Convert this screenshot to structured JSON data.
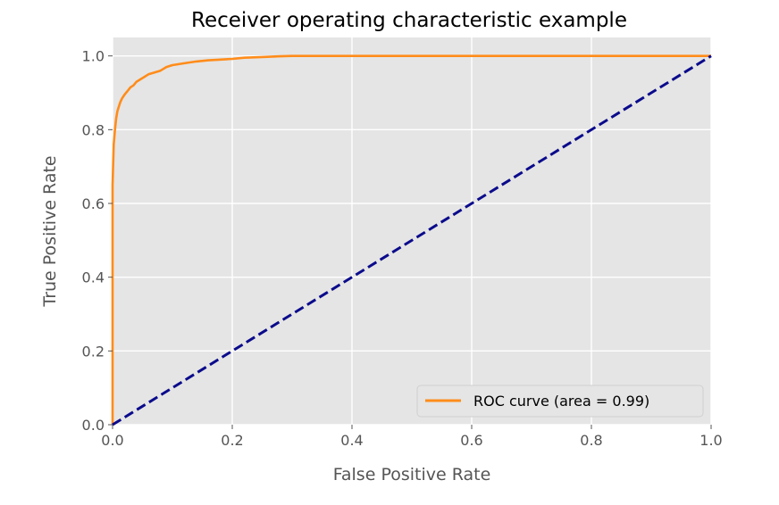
{
  "chart_data": {
    "type": "line",
    "title": "Receiver operating characteristic example",
    "xlabel": "False Positive Rate",
    "ylabel": "True Positive Rate",
    "xlim": [
      0.0,
      1.0
    ],
    "ylim": [
      0.0,
      1.05
    ],
    "xticks": [
      0.0,
      0.2,
      0.4,
      0.6,
      0.8,
      1.0
    ],
    "xtick_labels": [
      "0.0",
      "0.2",
      "0.4",
      "0.6",
      "0.8",
      "1.0"
    ],
    "yticks": [
      0.0,
      0.2,
      0.4,
      0.6,
      0.8,
      1.0
    ],
    "ytick_labels": [
      "0.0",
      "0.2",
      "0.4",
      "0.6",
      "0.8",
      "1.0"
    ],
    "grid": true,
    "legend_position": "lower-right",
    "background_color": "#e5e5e5",
    "series": [
      {
        "name": "ROC curve (area = 0.99)",
        "color": "#ff8c1a",
        "style": "solid",
        "show_in_legend": true,
        "x": [
          0.0,
          0.0,
          0.002,
          0.004,
          0.006,
          0.008,
          0.01,
          0.013,
          0.016,
          0.02,
          0.025,
          0.03,
          0.035,
          0.04,
          0.05,
          0.06,
          0.07,
          0.08,
          0.09,
          0.1,
          0.12,
          0.14,
          0.16,
          0.18,
          0.2,
          0.22,
          0.25,
          0.28,
          0.3,
          0.35,
          0.4,
          0.5,
          0.6,
          0.7,
          0.8,
          0.9,
          1.0
        ],
        "y": [
          0.0,
          0.65,
          0.76,
          0.8,
          0.83,
          0.85,
          0.86,
          0.875,
          0.885,
          0.895,
          0.905,
          0.915,
          0.92,
          0.93,
          0.94,
          0.95,
          0.955,
          0.96,
          0.97,
          0.975,
          0.98,
          0.985,
          0.988,
          0.99,
          0.992,
          0.995,
          0.997,
          0.999,
          1.0,
          1.0,
          1.0,
          1.0,
          1.0,
          1.0,
          1.0,
          1.0,
          1.0
        ]
      },
      {
        "name": "",
        "color": "#0b0b8c",
        "style": "dashed",
        "show_in_legend": false,
        "x": [
          0.0,
          1.0
        ],
        "y": [
          0.0,
          1.0
        ]
      }
    ]
  }
}
